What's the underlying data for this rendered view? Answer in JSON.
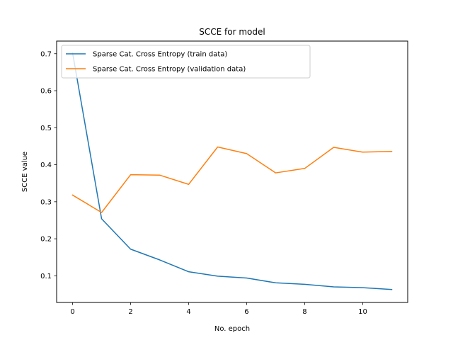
{
  "chart_data": {
    "type": "line",
    "title": "SCCE for model",
    "xlabel": "No. epoch",
    "ylabel": "SCCE value",
    "x": [
      0,
      1,
      2,
      3,
      4,
      5,
      6,
      7,
      8,
      9,
      10,
      11
    ],
    "xlim": [
      -0.55,
      11.55
    ],
    "ylim": [
      0.028,
      0.734
    ],
    "x_ticks": [
      0,
      2,
      4,
      6,
      8,
      10
    ],
    "y_ticks": [
      0.1,
      0.2,
      0.3,
      0.4,
      0.5,
      0.6,
      0.7
    ],
    "x_tick_labels": [
      "0",
      "2",
      "4",
      "6",
      "8",
      "10"
    ],
    "y_tick_labels": [
      "0.1",
      "0.2",
      "0.3",
      "0.4",
      "0.5",
      "0.6",
      "0.7"
    ],
    "grid": false,
    "legend_position": "top-left",
    "series": [
      {
        "name": "Sparse Cat. Cross Entropy (train data)",
        "color": "#1f77b4",
        "values": [
          0.702,
          0.254,
          0.172,
          0.143,
          0.111,
          0.099,
          0.094,
          0.081,
          0.077,
          0.07,
          0.068,
          0.063
        ]
      },
      {
        "name": "Sparse Cat. Cross Entropy (validation data)",
        "color": "#ff7f0e",
        "values": [
          0.318,
          0.271,
          0.373,
          0.372,
          0.347,
          0.448,
          0.43,
          0.378,
          0.39,
          0.447,
          0.434,
          0.436
        ]
      }
    ]
  }
}
